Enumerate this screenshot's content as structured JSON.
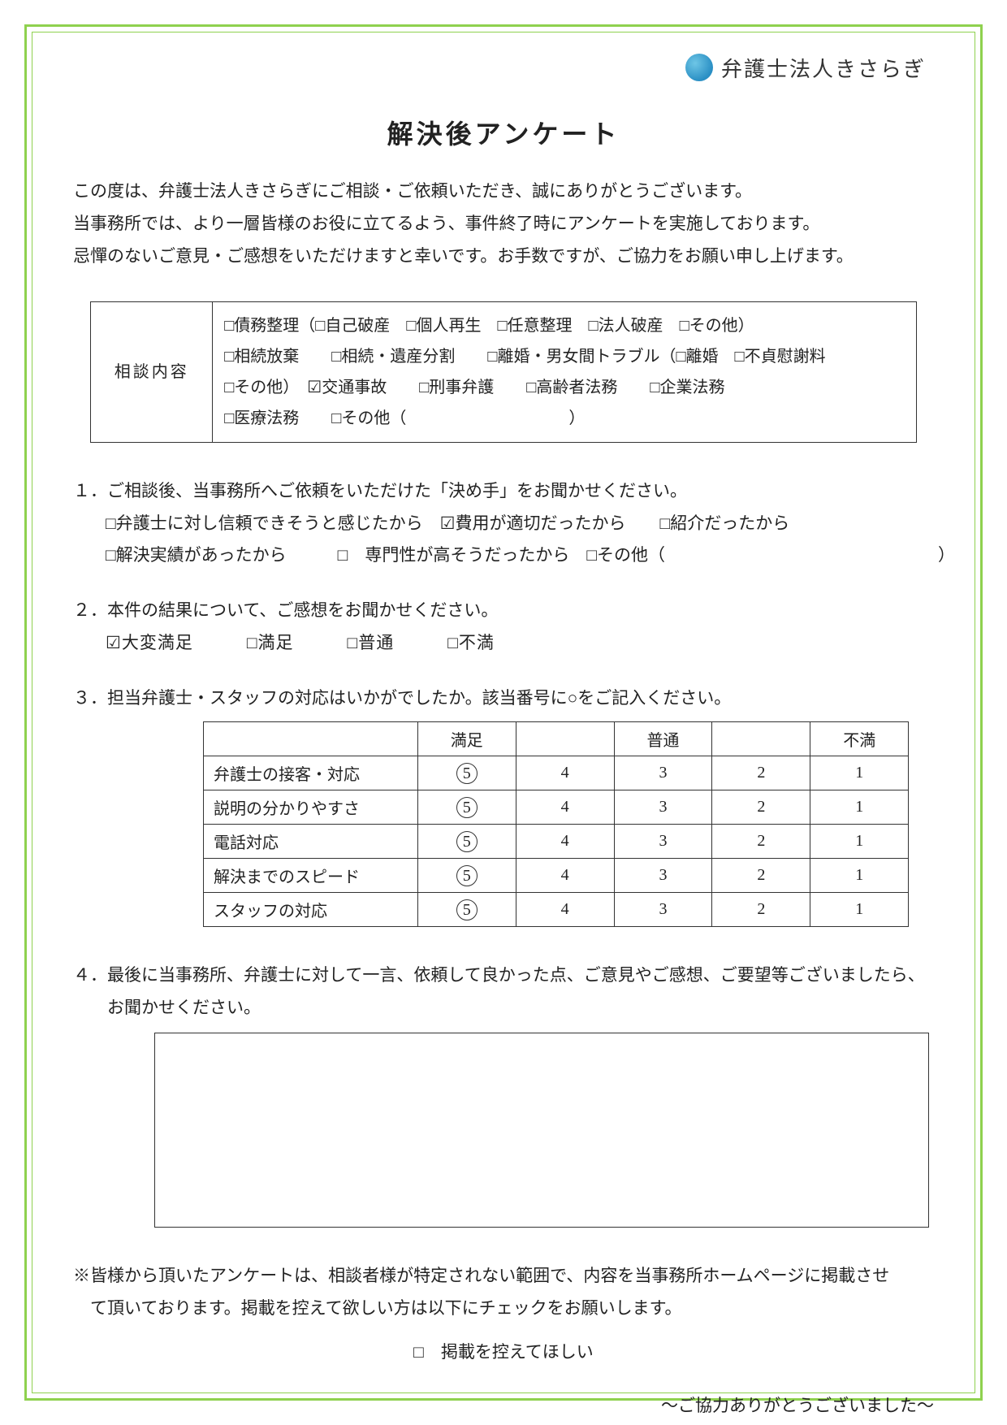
{
  "header": {
    "company_name": "弁護士法人きさらぎ",
    "company_sub": " "
  },
  "title": "解決後アンケート",
  "intro_lines": [
    "この度は、弁護士法人きさらぎにご相談・ご依頼いただき、誠にありがとうございます。",
    "当事務所では、より一層皆様のお役に立てるよう、事件終了時にアンケートを実施しております。",
    "忌憚のないご意見・ご感想をいただけますと幸いです。お手数ですが、ご協力をお願い申し上げます。"
  ],
  "consultation": {
    "label": "相談内容",
    "options_line1": "□債務整理（□自己破産　□個人再生　□任意整理　□法人破産　□その他）",
    "options_line2": "□相続放棄　　□相続・遺産分割　　□離婚・男女間トラブル（□離婚　□不貞慰謝料",
    "options_line3": "□その他）　☑交通事故　　□刑事弁護　　□高齢者法務　　□企業法務",
    "options_line4": "□医療法務　　□その他（　　　　　　　　　　）"
  },
  "q1": {
    "text": "１．ご相談後、当事務所へご依頼をいただけた「決め手」をお聞かせください。",
    "line1": "□弁護士に対し信頼できそうと感じたから　☑費用が適切だったから　　□紹介だったから",
    "line2": "□解決実績があったから　　　□　専門性が高そうだったから　□その他（　　　　　　　　　　　　　　　　）"
  },
  "q2": {
    "text": "２．本件の結果について、ご感想をお聞かせください。",
    "options": "☑大変満足　　　□満足　　　□普通　　　□不満"
  },
  "q3": {
    "text": "３．担当弁護士・スタッフの対応はいかがでしたか。該当番号に○をご記入ください。",
    "headers": [
      "",
      "満足",
      "",
      "普通",
      "",
      "不満"
    ],
    "rows": [
      {
        "label": "弁護士の接客・対応",
        "scores": [
          5,
          4,
          3,
          2,
          1
        ],
        "circled": 5
      },
      {
        "label": "説明の分かりやすさ",
        "scores": [
          5,
          4,
          3,
          2,
          1
        ],
        "circled": 5
      },
      {
        "label": "電話対応",
        "scores": [
          5,
          4,
          3,
          2,
          1
        ],
        "circled": 5
      },
      {
        "label": "解決までのスピード",
        "scores": [
          5,
          4,
          3,
          2,
          1
        ],
        "circled": 5
      },
      {
        "label": "スタッフの対応",
        "scores": [
          5,
          4,
          3,
          2,
          1
        ],
        "circled": 5
      }
    ]
  },
  "q4": {
    "text": "４．最後に当事務所、弁護士に対して一言、依頼して良かった点、ご意見やご感想、ご要望等ございましたら、お聞かせください。"
  },
  "footer_note": {
    "line1": "※皆様から頂いたアンケートは、相談者様が特定されない範囲で、内容を当事務所ホームページに掲載させ",
    "line2": "　て頂いております。掲載を控えて欲しい方は以下にチェックをお願いします。",
    "checkbox": "□　掲載を控えてほしい"
  },
  "thanks": "～ご協力ありがとうございました～",
  "colors": {
    "border_green": "#8fd14f",
    "text": "#222222"
  }
}
